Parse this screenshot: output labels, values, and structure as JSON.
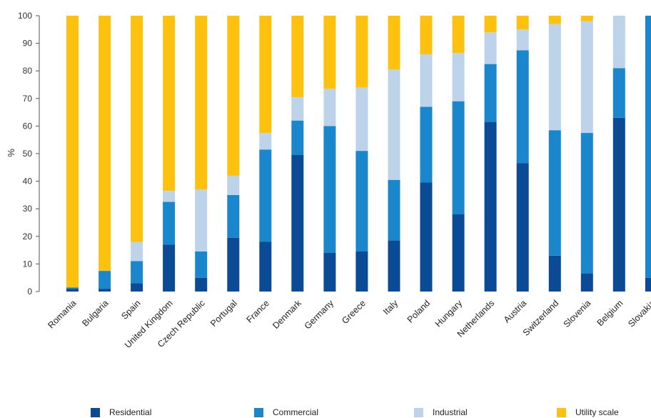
{
  "chart_data": {
    "type": "bar",
    "stacked": true,
    "ylabel": "%",
    "ylim": [
      0,
      100
    ],
    "yticks": [
      0,
      10,
      20,
      30,
      40,
      50,
      60,
      70,
      80,
      90,
      100
    ],
    "grid": false,
    "legend_position": "bottom",
    "categories": [
      "Romania",
      "Bulgaria",
      "Spain",
      "United Kingdom",
      "Czech Republic",
      "Portugal",
      "France",
      "Denmark",
      "Germany",
      "Greece",
      "Italy",
      "Poland",
      "Hungary",
      "Netherlands",
      "Austria",
      "Switzerland",
      "Slovenia",
      "Belgium",
      "Slovakia"
    ],
    "series": [
      {
        "name": "Residential",
        "color": "#0b4a94",
        "values": [
          1,
          1,
          3,
          17,
          5,
          19.5,
          18,
          49.5,
          14,
          14.5,
          18.5,
          39.5,
          28,
          61.5,
          46.5,
          13,
          6.5,
          63,
          5
        ]
      },
      {
        "name": "Commercial",
        "color": "#1a86cc",
        "values": [
          0.5,
          6.5,
          8,
          15.5,
          9.5,
          15.5,
          33.5,
          12.5,
          46,
          36.5,
          22,
          27.5,
          41,
          21,
          41,
          45.5,
          51,
          18,
          95
        ]
      },
      {
        "name": "Industrial",
        "color": "#bcd3ea",
        "values": [
          0,
          0,
          7,
          4,
          22.5,
          7,
          6,
          8.5,
          13.5,
          23,
          40,
          19,
          17.5,
          11.5,
          7.5,
          38.5,
          40.5,
          19,
          0
        ]
      },
      {
        "name": "Utility scale",
        "color": "#fec10e",
        "values": [
          98.5,
          92.5,
          82,
          63.5,
          63,
          58,
          42.5,
          29.5,
          26.5,
          26,
          19.5,
          14,
          13.5,
          6,
          5,
          3,
          2,
          0,
          0
        ]
      }
    ]
  }
}
